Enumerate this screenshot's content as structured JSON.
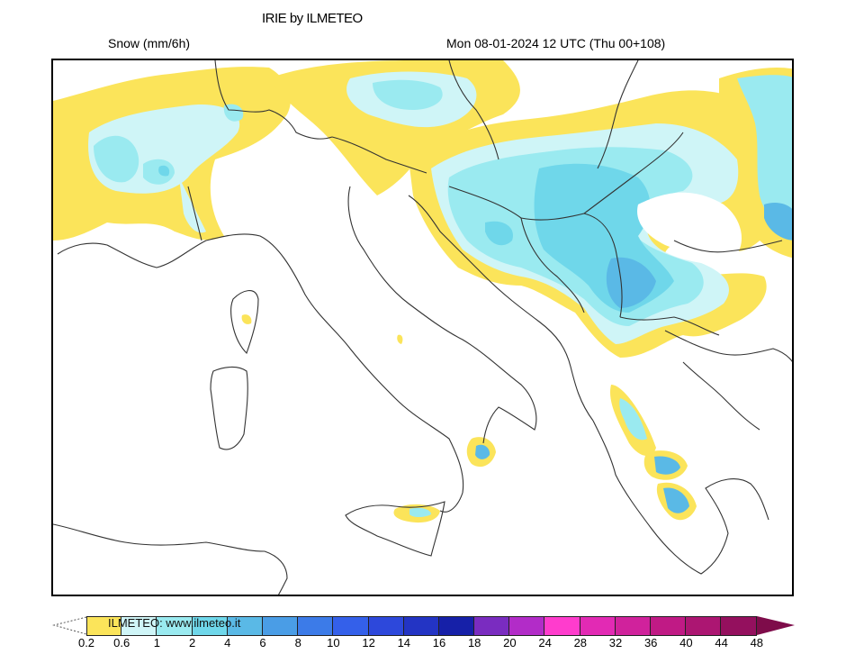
{
  "header": {
    "title": "IRIE by ILMETEO",
    "variable": "Snow (mm/6h)",
    "valid_time": "Mon 08-01-2024 12 UTC (Thu 00+108)"
  },
  "map": {
    "region": "Italy and the Balkans",
    "features": [
      "Heavy snow band over Balkans (Serbia, Bosnia, Croatia interior)",
      "Snow over western Alps / France",
      "Snow over Romania / Carpathians",
      "Snow spots over Greece (Pindus, Peloponnese)",
      "Small snow areas over Calabria and Sicily (Etna)",
      "Small spots over Corsica and central Apennines"
    ]
  },
  "legend": {
    "watermark": "ILMETEO:  www.ilmeteo.it",
    "units": "mm/6h",
    "ticks": [
      "0.2",
      "0.6",
      "1",
      "2",
      "4",
      "6",
      "8",
      "10",
      "12",
      "14",
      "16",
      "18",
      "20",
      "24",
      "28",
      "32",
      "36",
      "40",
      "44",
      "48"
    ],
    "colors": [
      "#fbe45a",
      "#cff5f7",
      "#9aeaf0",
      "#6fd7ea",
      "#5ab9e6",
      "#4a9de6",
      "#3c7be8",
      "#3460ea",
      "#2d48db",
      "#2334c4",
      "#1620a8",
      "#7a2cc0",
      "#b22cc8",
      "#ff3ccd",
      "#e22ab4",
      "#d0229c",
      "#c01a85",
      "#ac1672",
      "#94105e",
      "#7e0c4a"
    ],
    "over_color": "#7e0c4a"
  }
}
